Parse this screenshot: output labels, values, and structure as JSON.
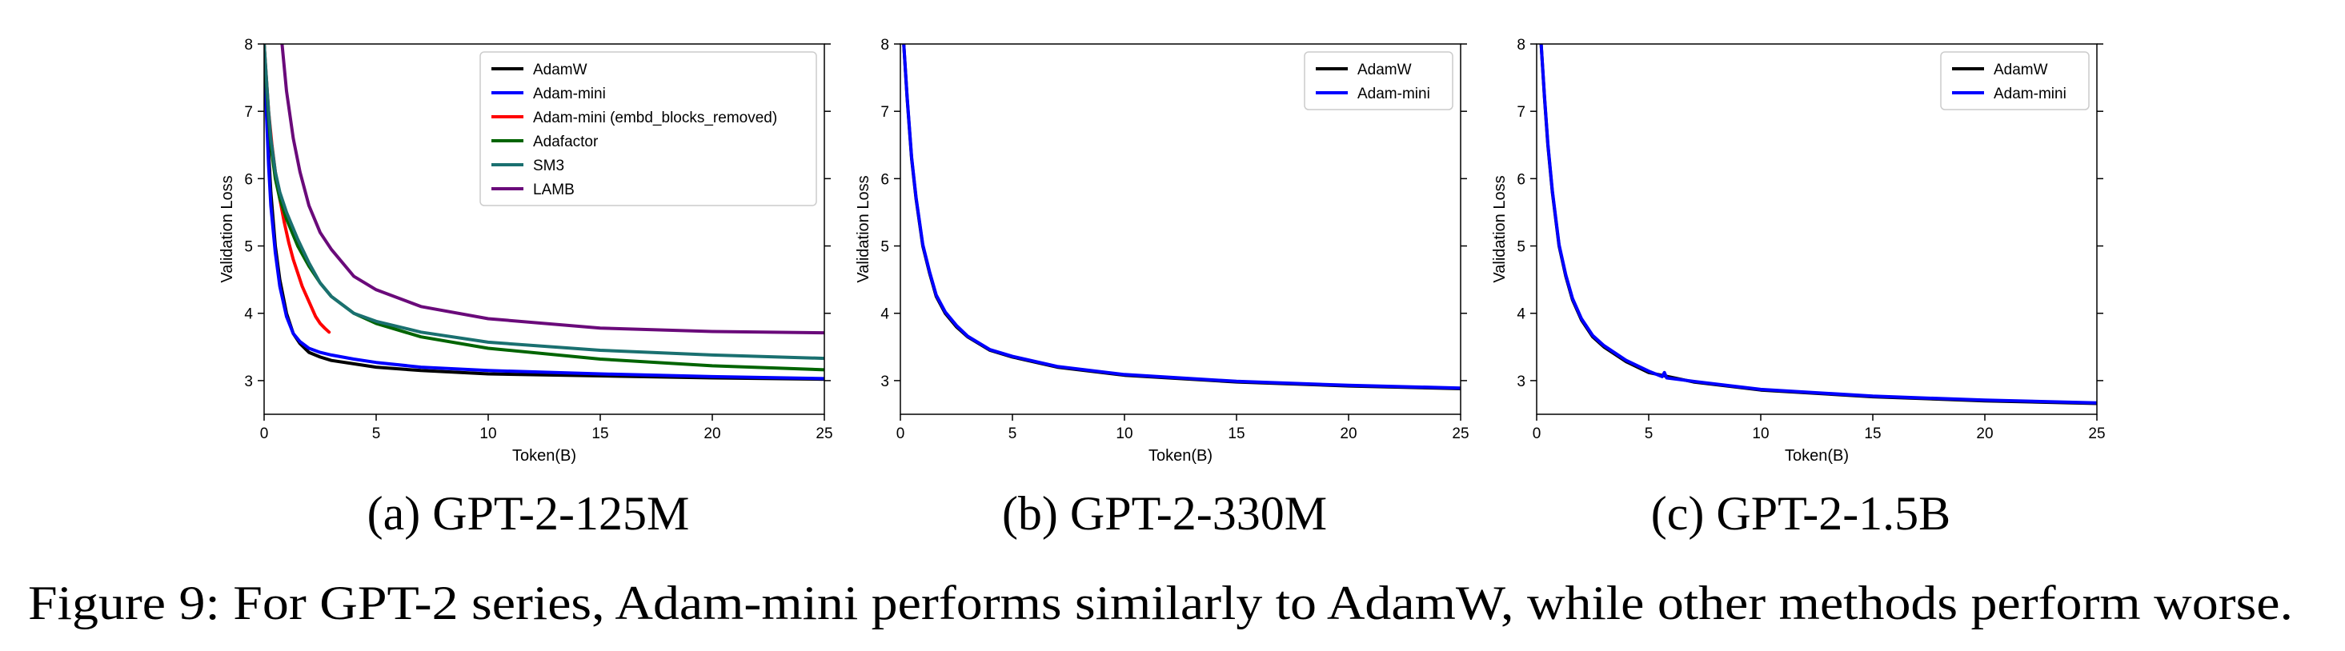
{
  "figure": {
    "caption": "Figure 9: For GPT-2 series, Adam-mini performs similarly to AdamW, while other methods perform worse."
  },
  "chart_data": [
    {
      "type": "line",
      "subcaption": "(a) GPT-2-125M",
      "xlabel": "Token(B)",
      "ylabel": "Validation Loss",
      "xlim": [
        0,
        25
      ],
      "ylim": [
        2.5,
        8
      ],
      "xticks": [
        0,
        5,
        10,
        15,
        20,
        25
      ],
      "yticks": [
        3,
        4,
        5,
        6,
        7,
        8
      ],
      "legend_position": "top-right",
      "grid": false,
      "series": [
        {
          "name": "AdamW",
          "color": "#000000",
          "x": [
            0,
            0.1,
            0.2,
            0.3,
            0.5,
            0.7,
            1,
            1.3,
            1.6,
            2,
            2.5,
            3,
            4,
            5,
            7,
            10,
            15,
            20,
            25
          ],
          "y": [
            8,
            7.2,
            6.4,
            5.8,
            5.0,
            4.5,
            4.0,
            3.7,
            3.55,
            3.42,
            3.35,
            3.3,
            3.25,
            3.2,
            3.15,
            3.1,
            3.07,
            3.04,
            3.02
          ]
        },
        {
          "name": "Adam-mini",
          "color": "#0000ff",
          "x": [
            0,
            0.1,
            0.2,
            0.3,
            0.5,
            0.7,
            1,
            1.3,
            1.6,
            2,
            2.5,
            3,
            4,
            5,
            7,
            10,
            15,
            20,
            25
          ],
          "y": [
            8,
            7.0,
            6.2,
            5.6,
            4.9,
            4.4,
            3.95,
            3.7,
            3.58,
            3.48,
            3.42,
            3.38,
            3.32,
            3.27,
            3.2,
            3.15,
            3.1,
            3.06,
            3.03
          ]
        },
        {
          "name": "Adam-mini (embd_blocks_removed)",
          "color": "#ff0000",
          "x": [
            0,
            0.1,
            0.2,
            0.35,
            0.5,
            0.7,
            0.9,
            1.1,
            1.3,
            1.5,
            1.7,
            1.9,
            2.1,
            2.3,
            2.5,
            2.7,
            2.9
          ],
          "y": [
            8,
            7.5,
            7.0,
            6.5,
            6.1,
            5.7,
            5.35,
            5.05,
            4.8,
            4.6,
            4.4,
            4.25,
            4.1,
            3.95,
            3.85,
            3.78,
            3.72
          ]
        },
        {
          "name": "Adafactor",
          "color": "#006400",
          "x": [
            0,
            0.1,
            0.2,
            0.3,
            0.5,
            0.7,
            1,
            1.5,
            2,
            2.5,
            3,
            4,
            5,
            7,
            10,
            15,
            20,
            25
          ],
          "y": [
            8,
            7.4,
            6.9,
            6.5,
            6.0,
            5.7,
            5.4,
            5.0,
            4.7,
            4.45,
            4.25,
            4.0,
            3.85,
            3.65,
            3.48,
            3.32,
            3.22,
            3.16
          ]
        },
        {
          "name": "SM3",
          "color": "#1a7070",
          "x": [
            0,
            0.1,
            0.2,
            0.3,
            0.5,
            0.7,
            1,
            1.5,
            2,
            2.5,
            3,
            4,
            5,
            7,
            10,
            15,
            20,
            25
          ],
          "y": [
            8,
            7.5,
            7.0,
            6.6,
            6.1,
            5.8,
            5.5,
            5.1,
            4.75,
            4.45,
            4.25,
            4.0,
            3.88,
            3.72,
            3.57,
            3.45,
            3.38,
            3.33
          ]
        },
        {
          "name": "LAMB",
          "color": "#6a0a7a",
          "x": [
            0.8,
            1,
            1.3,
            1.6,
            2,
            2.5,
            3,
            4,
            5,
            7,
            10,
            15,
            20,
            25
          ],
          "y": [
            8,
            7.3,
            6.6,
            6.1,
            5.6,
            5.2,
            4.95,
            4.55,
            4.35,
            4.1,
            3.92,
            3.78,
            3.73,
            3.71
          ]
        }
      ]
    },
    {
      "type": "line",
      "subcaption": "(b) GPT-2-330M",
      "xlabel": "Token(B)",
      "ylabel": "Validation Loss",
      "xlim": [
        0,
        25
      ],
      "ylim": [
        2.5,
        8
      ],
      "xticks": [
        0,
        5,
        10,
        15,
        20,
        25
      ],
      "yticks": [
        3,
        4,
        5,
        6,
        7,
        8
      ],
      "legend_position": "top-right",
      "grid": false,
      "series": [
        {
          "name": "AdamW",
          "color": "#000000",
          "x": [
            0.15,
            0.3,
            0.5,
            0.7,
            1,
            1.3,
            1.6,
            2,
            2.5,
            3,
            4,
            5,
            7,
            10,
            15,
            20,
            25
          ],
          "y": [
            8,
            7.2,
            6.3,
            5.7,
            5.0,
            4.6,
            4.25,
            4.0,
            3.8,
            3.65,
            3.45,
            3.35,
            3.2,
            3.08,
            2.98,
            2.92,
            2.88
          ]
        },
        {
          "name": "Adam-mini",
          "color": "#0000ff",
          "x": [
            0.15,
            0.3,
            0.5,
            0.7,
            1,
            1.3,
            1.6,
            2,
            2.5,
            3,
            4,
            5,
            7,
            10,
            15,
            20,
            25
          ],
          "y": [
            8,
            7.22,
            6.32,
            5.72,
            5.02,
            4.62,
            4.27,
            4.02,
            3.82,
            3.66,
            3.46,
            3.36,
            3.21,
            3.09,
            2.99,
            2.93,
            2.89
          ]
        }
      ]
    },
    {
      "type": "line",
      "subcaption": "(c) GPT-2-1.5B",
      "xlabel": "Token(B)",
      "ylabel": "Validation Loss",
      "xlim": [
        0,
        25
      ],
      "ylim": [
        2.5,
        8
      ],
      "xticks": [
        0,
        5,
        10,
        15,
        20,
        25
      ],
      "yticks": [
        3,
        4,
        5,
        6,
        7,
        8
      ],
      "legend_position": "top-right",
      "grid": false,
      "series": [
        {
          "name": "AdamW",
          "color": "#000000",
          "x": [
            0.2,
            0.35,
            0.5,
            0.7,
            1,
            1.3,
            1.6,
            2,
            2.5,
            3,
            4,
            5,
            7,
            10,
            15,
            20,
            25
          ],
          "y": [
            8,
            7.2,
            6.5,
            5.8,
            5.0,
            4.55,
            4.2,
            3.9,
            3.65,
            3.5,
            3.28,
            3.12,
            2.98,
            2.86,
            2.76,
            2.7,
            2.66
          ]
        },
        {
          "name": "Adam-mini",
          "color": "#0000ff",
          "x": [
            0.2,
            0.35,
            0.5,
            0.7,
            1,
            1.3,
            1.6,
            2,
            2.5,
            3,
            4,
            5,
            5.6,
            5.7,
            5.8,
            7,
            10,
            15,
            20,
            25
          ],
          "y": [
            8,
            7.22,
            6.52,
            5.82,
            5.02,
            4.57,
            4.22,
            3.92,
            3.67,
            3.52,
            3.3,
            3.14,
            3.06,
            3.12,
            3.04,
            2.99,
            2.87,
            2.77,
            2.71,
            2.67
          ]
        }
      ]
    }
  ]
}
